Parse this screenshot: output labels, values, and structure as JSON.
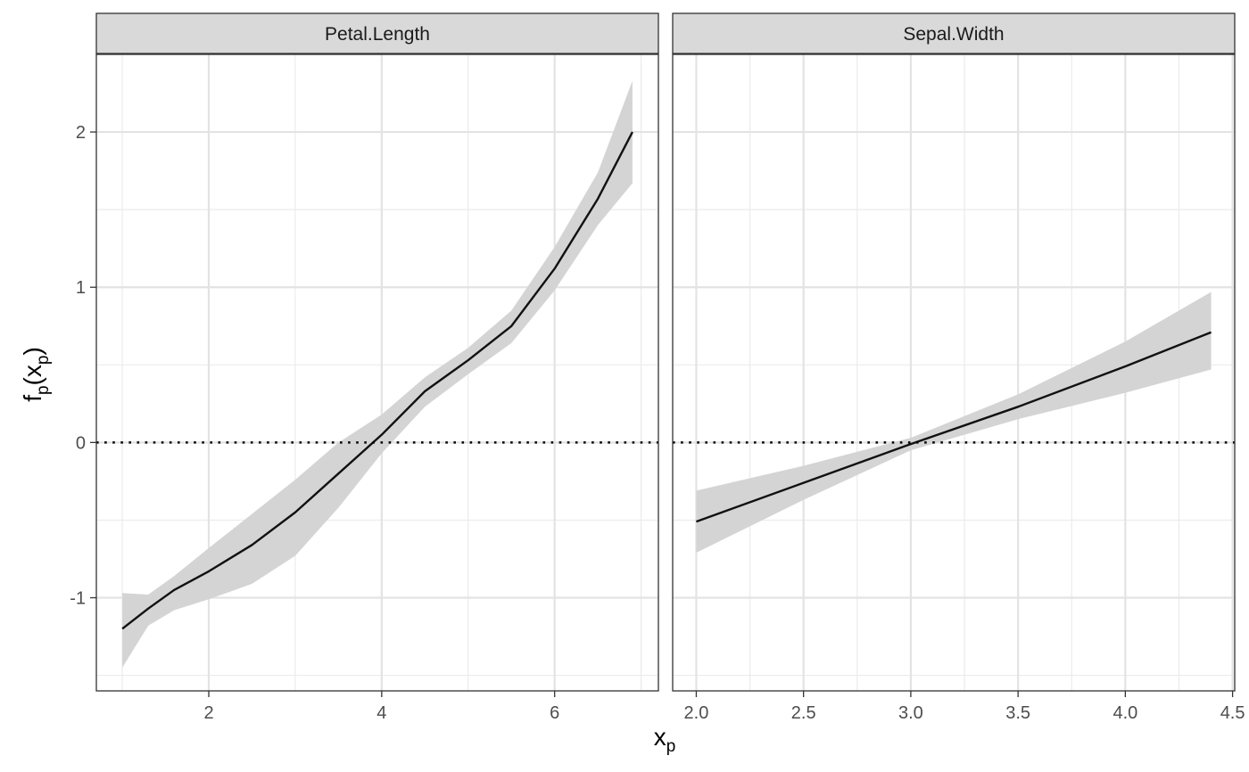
{
  "chart_data": {
    "type": "line",
    "ylabel": {
      "main": "f",
      "sub1": "p",
      "open": "(x",
      "sub2": "p",
      "close": ")"
    },
    "xlabel": {
      "main": "x",
      "sub": "p"
    },
    "y_ticks": [
      {
        "value": 2,
        "label": "2"
      },
      {
        "value": 1,
        "label": "1"
      },
      {
        "value": 0,
        "label": "0"
      },
      {
        "value": -1,
        "label": "-1"
      }
    ],
    "ylim": [
      -1.6,
      2.5
    ],
    "reference_line": {
      "y": 0,
      "style": "dotted"
    },
    "grid": true,
    "panels": [
      {
        "title": "Petal.Length",
        "xlim": [
          0.7,
          7.2
        ],
        "x_ticks": [
          {
            "value": 2,
            "label": "2"
          },
          {
            "value": 4,
            "label": "4"
          },
          {
            "value": 6,
            "label": "6"
          }
        ],
        "x_minor": [
          1,
          3,
          5,
          7
        ],
        "series": [
          {
            "x": [
              1.0,
              1.3,
              1.6,
              2.0,
              2.5,
              3.0,
              3.5,
              4.0,
              4.5,
              5.0,
              5.5,
              6.0,
              6.5,
              6.9
            ],
            "y": [
              -1.2,
              -1.07,
              -0.95,
              -0.83,
              -0.66,
              -0.45,
              -0.2,
              0.05,
              0.33,
              0.53,
              0.75,
              1.12,
              1.57,
              2.0
            ],
            "lower": [
              -1.45,
              -1.18,
              -1.08,
              -1.01,
              -0.91,
              -0.73,
              -0.42,
              -0.07,
              0.23,
              0.44,
              0.64,
              0.98,
              1.4,
              1.67
            ],
            "upper": [
              -0.97,
              -0.98,
              -0.86,
              -0.68,
              -0.46,
              -0.24,
              0.0,
              0.18,
              0.42,
              0.61,
              0.85,
              1.26,
              1.74,
              2.33
            ]
          }
        ]
      },
      {
        "title": "Sepal.Width",
        "xlim": [
          1.89,
          4.51
        ],
        "x_ticks": [
          {
            "value": 2.0,
            "label": "2.0"
          },
          {
            "value": 2.5,
            "label": "2.5"
          },
          {
            "value": 3.0,
            "label": "3.0"
          },
          {
            "value": 3.5,
            "label": "3.5"
          },
          {
            "value": 4.0,
            "label": "4.0"
          },
          {
            "value": 4.5,
            "label": "4.5"
          }
        ],
        "x_minor": [
          2.25,
          2.75,
          3.25,
          3.75,
          4.25
        ],
        "series": [
          {
            "x": [
              2.0,
              2.5,
              3.0,
              3.5,
              4.0,
              4.4
            ],
            "y": [
              -0.51,
              -0.26,
              -0.01,
              0.23,
              0.49,
              0.71
            ],
            "lower": [
              -0.71,
              -0.37,
              -0.05,
              0.15,
              0.32,
              0.47
            ],
            "upper": [
              -0.31,
              -0.15,
              0.03,
              0.31,
              0.65,
              0.97
            ]
          }
        ]
      }
    ]
  }
}
